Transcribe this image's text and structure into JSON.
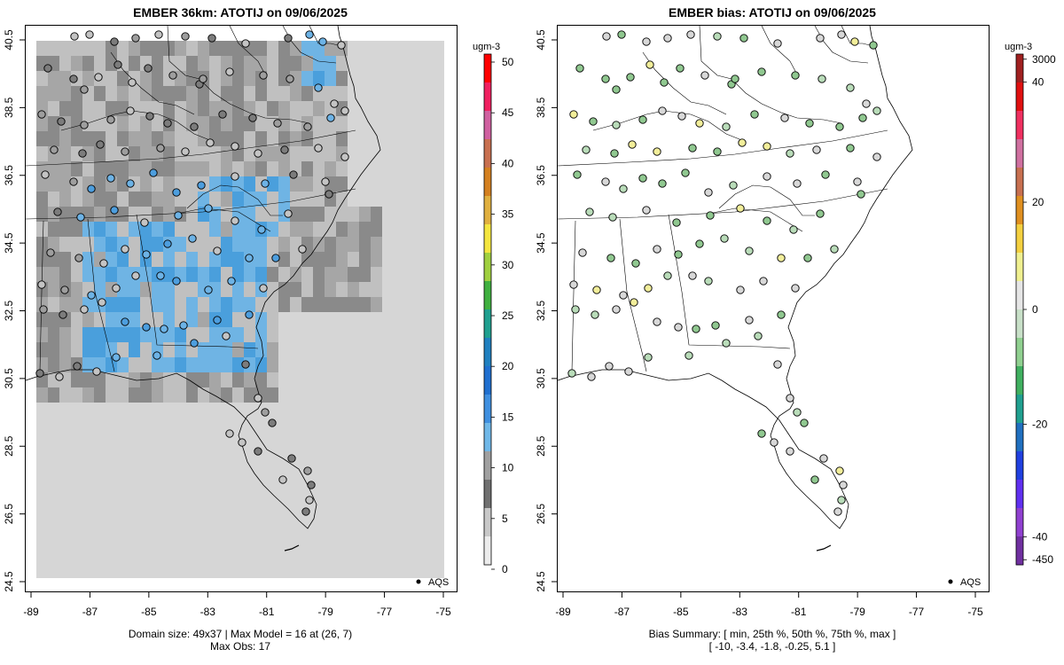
{
  "left": {
    "title": "EMBER 36km: ATOTIJ on 09/06/2025",
    "unit": "ugm-3",
    "colorbar_ticks": [
      "50",
      "45",
      "40",
      "35",
      "30",
      "25",
      "20",
      "15",
      "10",
      "5",
      "0"
    ],
    "footer_line1": "Domain size: 49x37 | Max Model = 16 at (26, 7)",
    "footer_line2": "Max Obs: 17",
    "legend_label": "AQS"
  },
  "right": {
    "title": "EMBER bias: ATOTIJ on 09/06/2025",
    "unit": "ugm-3",
    "colorbar_ticks": [
      "3000",
      "40",
      "20",
      "0",
      "-20",
      "-40",
      "-450"
    ],
    "footer_line1": "Bias Summary: [ min, 25th %, 50th %, 75th %, max ]",
    "footer_line2": "[ -10,  -3.4,  -1.8,  -0.25,  5.1 ]",
    "legend_label": "AQS"
  },
  "axes": {
    "x_ticks": [
      "-89",
      "-87",
      "-85",
      "-83",
      "-81",
      "-79",
      "-77",
      "-75"
    ],
    "y_ticks": [
      "40.5",
      "38.5",
      "36.5",
      "34.5",
      "32.5",
      "30.5",
      "28.5",
      "26.5",
      "24.5"
    ]
  },
  "colors": {
    "model_low": "#d6d6d6",
    "model_mid": "#8c8c8c",
    "model_high": "#5aaee6",
    "bias_neg": "#90c890",
    "bias_zero": "#d8d8d8",
    "bias_pos": "#f2ee9a"
  }
}
